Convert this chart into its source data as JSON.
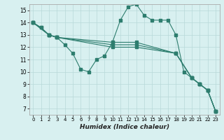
{
  "xlabel": "Humidex (Indice chaleur)",
  "bg_color": "#d8f0f0",
  "grid_color": "#b8d8d8",
  "line_color": "#2d7d6e",
  "xlim": [
    -0.5,
    23.5
  ],
  "ylim": [
    6.5,
    15.5
  ],
  "xticks": [
    0,
    1,
    2,
    3,
    4,
    5,
    6,
    7,
    8,
    9,
    10,
    11,
    12,
    13,
    14,
    15,
    16,
    17,
    18,
    19,
    20,
    21,
    22,
    23
  ],
  "yticks": [
    7,
    8,
    9,
    10,
    11,
    12,
    13,
    14,
    15
  ],
  "line1": {
    "x": [
      0,
      1,
      2,
      3,
      4,
      5,
      6,
      7,
      8,
      9,
      10,
      11,
      12,
      13,
      14,
      15,
      16,
      17,
      18,
      19,
      20,
      21,
      22,
      23
    ],
    "y": [
      14,
      13.6,
      13.0,
      12.8,
      12.2,
      11.5,
      10.2,
      10.0,
      11.0,
      11.3,
      12.4,
      14.2,
      15.3,
      15.5,
      14.6,
      14.2,
      14.2,
      14.2,
      13.0,
      10.0,
      9.5,
      9.0,
      8.5,
      6.8
    ]
  },
  "line2": {
    "x": [
      0,
      1,
      2,
      3,
      10,
      13,
      18,
      20,
      21,
      22,
      23
    ],
    "y": [
      14,
      13.6,
      13.0,
      12.8,
      12.4,
      12.4,
      11.5,
      9.5,
      9.0,
      8.5,
      6.8
    ]
  },
  "line3": {
    "x": [
      0,
      2,
      3,
      10,
      13,
      18,
      20,
      21,
      22,
      23
    ],
    "y": [
      14,
      13.0,
      12.8,
      12.2,
      12.2,
      11.5,
      9.5,
      9.0,
      8.5,
      6.8
    ]
  },
  "line4": {
    "x": [
      0,
      2,
      3,
      10,
      13,
      18,
      20,
      21,
      22,
      23
    ],
    "y": [
      14,
      13.0,
      12.8,
      12.0,
      12.0,
      11.5,
      9.5,
      9.0,
      8.5,
      6.8
    ]
  }
}
